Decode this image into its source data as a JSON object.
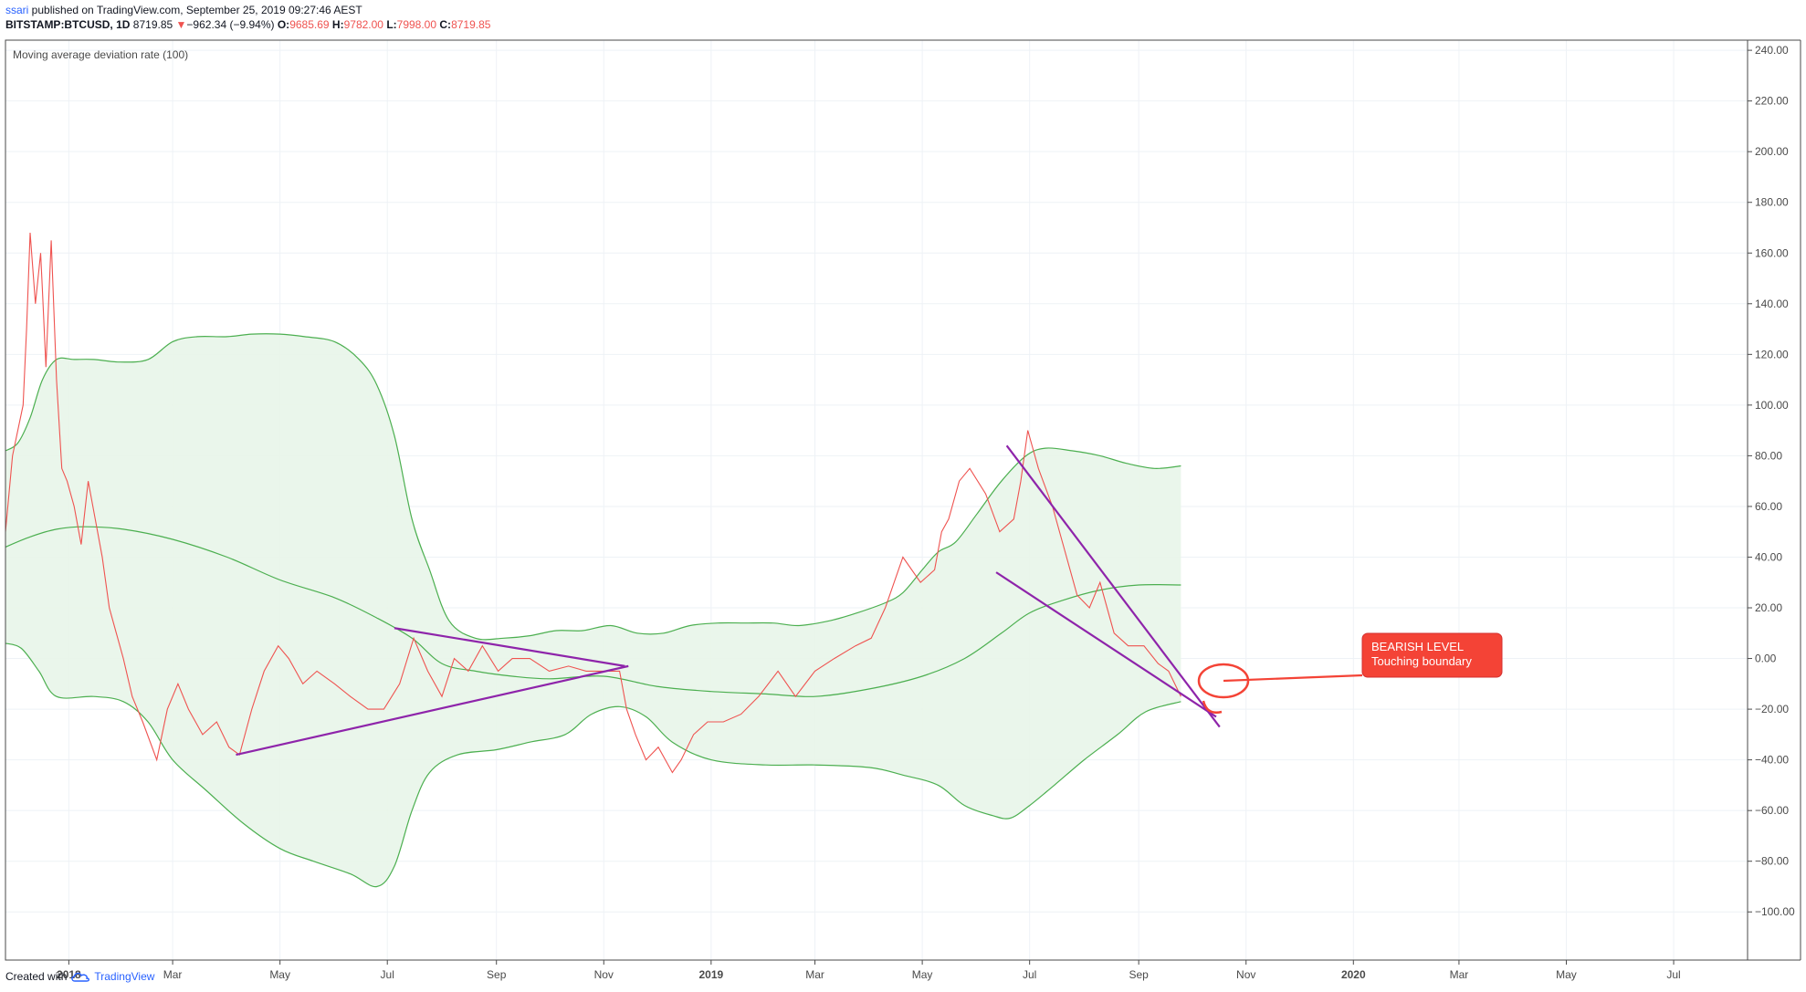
{
  "header": {
    "user": "ssari",
    "published": " published on TradingView.com, September 25, 2019 09:27:46 AEST",
    "symbol": "BITSTAMP:BTCUSD, 1D",
    "last": "8719.85",
    "change": "−962.34 (−9.94%)",
    "open_label": "O:",
    "open": "9685.69",
    "high_label": "H:",
    "high": "9782.00",
    "low_label": "L:",
    "low": "7998.00",
    "close_label": "C:",
    "close": "8719.85"
  },
  "indicator": {
    "name": "Moving average deviation rate (100)"
  },
  "footer": {
    "created_with": "Created with",
    "brand": "TradingView"
  },
  "colors": {
    "line": "#ef5350",
    "band": "#4caf50",
    "fill": "#e8f5e9",
    "trend": "#8e24aa",
    "callout": "#f44336",
    "grid": "#eef2f6"
  },
  "chart_data": {
    "type": "line",
    "title": "Moving average deviation rate (100)",
    "xlabel": "",
    "ylabel": "",
    "xlim": [
      "2017-11-26",
      "2020-08-12"
    ],
    "ylim": [
      -119,
      244
    ],
    "grid": true,
    "x_ticks": [
      {
        "date": "2018-01-01",
        "label": "2018",
        "bold": true
      },
      {
        "date": "2018-03-01",
        "label": "Mar"
      },
      {
        "date": "2018-05-01",
        "label": "May"
      },
      {
        "date": "2018-07-01",
        "label": "Jul"
      },
      {
        "date": "2018-09-01",
        "label": "Sep"
      },
      {
        "date": "2018-11-01",
        "label": "Nov"
      },
      {
        "date": "2019-01-01",
        "label": "2019",
        "bold": true
      },
      {
        "date": "2019-03-01",
        "label": "Mar"
      },
      {
        "date": "2019-05-01",
        "label": "May"
      },
      {
        "date": "2019-07-01",
        "label": "Jul"
      },
      {
        "date": "2019-09-01",
        "label": "Sep"
      },
      {
        "date": "2019-11-01",
        "label": "Nov"
      },
      {
        "date": "2020-01-01",
        "label": "2020",
        "bold": true
      },
      {
        "date": "2020-03-01",
        "label": "Mar"
      },
      {
        "date": "2020-05-01",
        "label": "May"
      },
      {
        "date": "2020-07-01",
        "label": "Jul"
      }
    ],
    "y_ticks": [
      {
        "value": 240,
        "label": "240.00"
      },
      {
        "value": 220,
        "label": "220.00"
      },
      {
        "value": 200,
        "label": "200.00"
      },
      {
        "value": 180,
        "label": "180.00"
      },
      {
        "value": 160,
        "label": "160.00"
      },
      {
        "value": 140,
        "label": "140.00"
      },
      {
        "value": 120,
        "label": "120.00"
      },
      {
        "value": 100,
        "label": "100.00"
      },
      {
        "value": 80,
        "label": "80.00"
      },
      {
        "value": 60,
        "label": "60.00"
      },
      {
        "value": 40,
        "label": "40.00"
      },
      {
        "value": 20,
        "label": "20.00"
      },
      {
        "value": 0,
        "label": "0.00"
      },
      {
        "value": -20,
        "label": "−20.00"
      },
      {
        "value": -40,
        "label": "−40.00"
      },
      {
        "value": -60,
        "label": "−60.00"
      },
      {
        "value": -80,
        "label": "−80.00"
      },
      {
        "value": -100,
        "label": "−100.00"
      }
    ],
    "series": [
      {
        "role": "deviation",
        "x": [
          "2017-11-26",
          "2017-11-30",
          "2017-12-03",
          "2017-12-06",
          "2017-12-08",
          "2017-12-10",
          "2017-12-13",
          "2017-12-16",
          "2017-12-17",
          "2017-12-19",
          "2017-12-22",
          "2017-12-25",
          "2017-12-28",
          "2017-12-31",
          "2018-01-04",
          "2018-01-08",
          "2018-01-12",
          "2018-01-16",
          "2018-01-20",
          "2018-01-24",
          "2018-01-28",
          "2018-02-01",
          "2018-02-06",
          "2018-02-12",
          "2018-02-20",
          "2018-02-26",
          "2018-03-04",
          "2018-03-10",
          "2018-03-18",
          "2018-03-26",
          "2018-04-02",
          "2018-04-08",
          "2018-04-15",
          "2018-04-22",
          "2018-04-30",
          "2018-05-06",
          "2018-05-14",
          "2018-05-22",
          "2018-06-01",
          "2018-06-10",
          "2018-06-20",
          "2018-06-29",
          "2018-07-08",
          "2018-07-16",
          "2018-07-24",
          "2018-08-01",
          "2018-08-08",
          "2018-08-16",
          "2018-08-24",
          "2018-09-02",
          "2018-09-10",
          "2018-09-20",
          "2018-10-01",
          "2018-10-12",
          "2018-10-22",
          "2018-11-01",
          "2018-11-10",
          "2018-11-14",
          "2018-11-19",
          "2018-11-25",
          "2018-12-02",
          "2018-12-10",
          "2018-12-15",
          "2018-12-22",
          "2018-12-30",
          "2019-01-08",
          "2019-01-18",
          "2019-01-28",
          "2019-02-08",
          "2019-02-18",
          "2019-03-01",
          "2019-03-12",
          "2019-03-24",
          "2019-04-02",
          "2019-04-10",
          "2019-04-20",
          "2019-04-30",
          "2019-05-08",
          "2019-05-12",
          "2019-05-16",
          "2019-05-22",
          "2019-05-28",
          "2019-06-06",
          "2019-06-14",
          "2019-06-22",
          "2019-06-26",
          "2019-06-30",
          "2019-07-06",
          "2019-07-14",
          "2019-07-20",
          "2019-07-28",
          "2019-08-04",
          "2019-08-10",
          "2019-08-18",
          "2019-08-26",
          "2019-09-04",
          "2019-09-12",
          "2019-09-18",
          "2019-09-25"
        ],
        "values": [
          50,
          80,
          90,
          100,
          130,
          168,
          140,
          160,
          145,
          115,
          165,
          110,
          75,
          70,
          60,
          45,
          70,
          55,
          40,
          20,
          10,
          0,
          -15,
          -25,
          -40,
          -20,
          -10,
          -20,
          -30,
          -25,
          -35,
          -38,
          -20,
          -5,
          5,
          0,
          -10,
          -5,
          -10,
          -15,
          -20,
          -20,
          -10,
          8,
          -5,
          -15,
          0,
          -5,
          5,
          -5,
          0,
          0,
          -5,
          -3,
          -5,
          -5,
          -5,
          -20,
          -30,
          -40,
          -35,
          -45,
          -40,
          -30,
          -25,
          -25,
          -22,
          -15,
          -5,
          -15,
          -5,
          0,
          5,
          8,
          20,
          40,
          30,
          35,
          50,
          55,
          70,
          75,
          65,
          50,
          55,
          70,
          90,
          75,
          60,
          45,
          25,
          20,
          30,
          10,
          5,
          5,
          -2,
          -5,
          -15
        ]
      },
      {
        "role": "upper-band",
        "x": [
          "2017-11-26",
          "2017-12-03",
          "2017-12-10",
          "2017-12-17",
          "2017-12-25",
          "2018-01-04",
          "2018-01-15",
          "2018-01-30",
          "2018-02-15",
          "2018-03-01",
          "2018-03-15",
          "2018-04-01",
          "2018-04-15",
          "2018-05-01",
          "2018-05-15",
          "2018-06-01",
          "2018-06-15",
          "2018-06-25",
          "2018-07-05",
          "2018-07-15",
          "2018-07-25",
          "2018-08-05",
          "2018-08-20",
          "2018-09-05",
          "2018-09-20",
          "2018-10-05",
          "2018-10-20",
          "2018-11-05",
          "2018-11-20",
          "2018-12-05",
          "2018-12-20",
          "2019-01-05",
          "2019-01-20",
          "2019-02-05",
          "2019-02-20",
          "2019-03-10",
          "2019-03-25",
          "2019-04-10",
          "2019-04-20",
          "2019-05-01",
          "2019-05-10",
          "2019-05-20",
          "2019-06-01",
          "2019-06-15",
          "2019-06-29",
          "2019-07-10",
          "2019-07-25",
          "2019-08-10",
          "2019-08-25",
          "2019-09-10",
          "2019-09-25"
        ],
        "values": [
          82,
          85,
          95,
          110,
          118,
          118,
          118,
          117,
          118,
          125,
          127,
          127,
          128,
          128,
          127,
          125,
          118,
          108,
          88,
          55,
          35,
          15,
          8,
          8,
          9,
          11,
          11,
          13,
          10,
          10,
          13,
          14,
          14,
          14,
          13,
          15,
          18,
          22,
          26,
          35,
          42,
          46,
          57,
          70,
          80,
          83,
          82,
          80,
          77,
          75,
          76
        ]
      },
      {
        "role": "middle-line",
        "x": [
          "2017-11-26",
          "2017-12-10",
          "2017-12-25",
          "2018-01-10",
          "2018-02-01",
          "2018-03-01",
          "2018-04-01",
          "2018-05-01",
          "2018-06-01",
          "2018-06-25",
          "2018-07-15",
          "2018-08-01",
          "2018-08-20",
          "2018-09-10",
          "2018-10-01",
          "2018-11-01",
          "2018-12-01",
          "2019-01-01",
          "2019-02-01",
          "2019-03-01",
          "2019-04-01",
          "2019-05-01",
          "2019-05-25",
          "2019-06-15",
          "2019-07-01",
          "2019-07-20",
          "2019-08-10",
          "2019-09-01",
          "2019-09-25"
        ],
        "values": [
          44,
          48,
          51,
          52,
          51,
          47,
          40,
          31,
          24,
          16,
          8,
          -2,
          -5,
          -7,
          -8,
          -7,
          -11,
          -13,
          -14,
          -15,
          -12,
          -7,
          0,
          10,
          18,
          23,
          27,
          29,
          29
        ]
      },
      {
        "role": "lower-band",
        "x": [
          "2017-11-26",
          "2017-12-05",
          "2017-12-15",
          "2017-12-25",
          "2018-01-15",
          "2018-02-01",
          "2018-02-15",
          "2018-03-01",
          "2018-03-20",
          "2018-04-10",
          "2018-05-01",
          "2018-05-20",
          "2018-06-10",
          "2018-06-25",
          "2018-07-05",
          "2018-07-15",
          "2018-07-25",
          "2018-08-10",
          "2018-09-01",
          "2018-09-20",
          "2018-10-10",
          "2018-10-25",
          "2018-11-10",
          "2018-11-25",
          "2018-12-10",
          "2019-01-01",
          "2019-02-01",
          "2019-03-01",
          "2019-04-01",
          "2019-04-20",
          "2019-05-10",
          "2019-05-25",
          "2019-06-10",
          "2019-06-20",
          "2019-07-01",
          "2019-07-15",
          "2019-08-01",
          "2019-08-20",
          "2019-09-05",
          "2019-09-25"
        ],
        "values": [
          6,
          4,
          -5,
          -15,
          -15,
          -17,
          -25,
          -40,
          -52,
          -65,
          -75,
          -80,
          -85,
          -90,
          -82,
          -60,
          -45,
          -38,
          -36,
          -33,
          -30,
          -22,
          -19,
          -23,
          -33,
          -40,
          -42,
          -42,
          -43,
          -46,
          -50,
          -58,
          -62,
          -63,
          -58,
          -50,
          -40,
          -30,
          -21,
          -17
        ]
      }
    ],
    "annotations": [
      {
        "type": "trendline",
        "from": {
          "date": "2018-04-06",
          "value": -38
        },
        "to": {
          "date": "2018-11-15",
          "value": -3
        }
      },
      {
        "type": "trendline",
        "from": {
          "date": "2018-07-05",
          "value": 12
        },
        "to": {
          "date": "2018-11-13",
          "value": -3
        }
      },
      {
        "type": "trendline",
        "from": {
          "date": "2019-06-18",
          "value": 84
        },
        "to": {
          "date": "2019-10-17",
          "value": -27
        }
      },
      {
        "type": "trendline",
        "from": {
          "date": "2019-06-12",
          "value": 34
        },
        "to": {
          "date": "2019-10-15",
          "value": -23
        }
      },
      {
        "type": "callout",
        "title": "BEARISH LEVEL",
        "text": "Touching boundary"
      }
    ]
  }
}
